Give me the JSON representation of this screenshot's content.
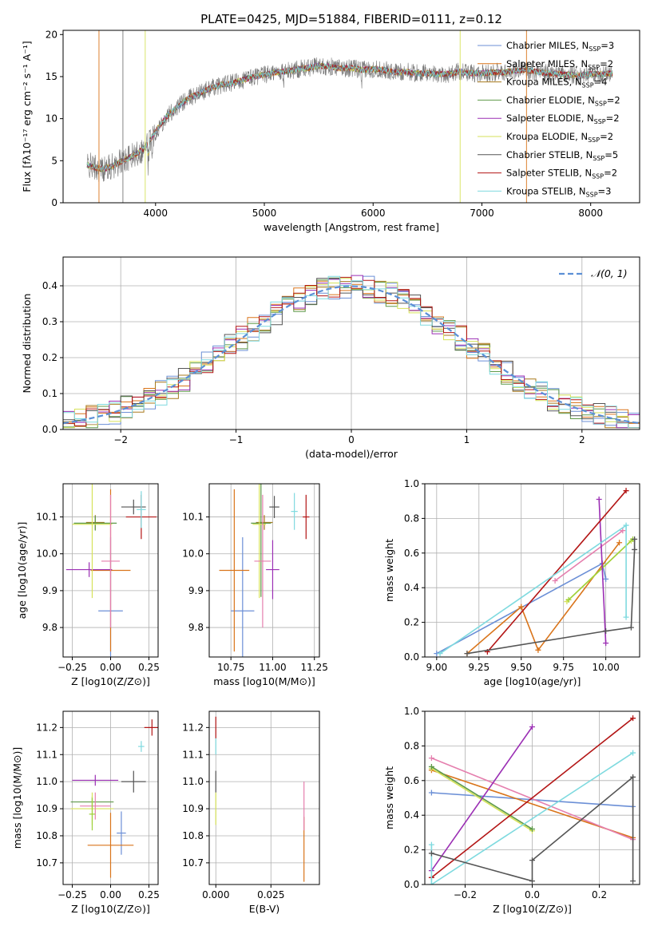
{
  "figure": {
    "title": "PLATE=0425, MJD=51884, FIBERID=0111, z=0.12",
    "colors": [
      "#6b8fd6",
      "#d9741a",
      "#a8791c",
      "#5f9a4a",
      "#9b2fb4",
      "#d6e25a",
      "#555555",
      "#b31515",
      "#7fdadf"
    ],
    "extra_colors": {
      "pink": "#e57fae",
      "lime": "#9fd13c",
      "orange": "#e67e22"
    }
  },
  "chart_data": [
    {
      "id": "spectrum",
      "type": "line",
      "xlabel": "wavelength [Angstrom, rest frame]",
      "ylabel": "Flux [fλ10⁻¹⁷ erg cm⁻² s⁻¹ A⁻¹]",
      "xlim": [
        3150,
        8450
      ],
      "ylim": [
        0,
        20.5
      ],
      "xticks": [
        4000,
        5000,
        6000,
        7000,
        8000
      ],
      "yticks": [
        0,
        5,
        10,
        15,
        20
      ],
      "grid": false,
      "legend_position": "top-right",
      "continuum": [
        [
          3370,
          4.5
        ],
        [
          3500,
          4.0
        ],
        [
          3600,
          4.3
        ],
        [
          3700,
          5.0
        ],
        [
          3800,
          5.6
        ],
        [
          3900,
          6.5
        ],
        [
          4000,
          8.5
        ],
        [
          4100,
          10.2
        ],
        [
          4200,
          11.4
        ],
        [
          4300,
          12.4
        ],
        [
          4400,
          13.0
        ],
        [
          4500,
          13.6
        ],
        [
          4600,
          14.0
        ],
        [
          4700,
          14.2
        ],
        [
          4800,
          14.6
        ],
        [
          4900,
          15.0
        ],
        [
          5000,
          15.2
        ],
        [
          5100,
          15.5
        ],
        [
          5200,
          15.6
        ],
        [
          5300,
          15.9
        ],
        [
          5400,
          16.0
        ],
        [
          5500,
          16.3
        ],
        [
          5600,
          16.2
        ],
        [
          5700,
          16.0
        ],
        [
          5800,
          16.0
        ],
        [
          5900,
          15.8
        ],
        [
          6000,
          15.9
        ],
        [
          6100,
          15.8
        ],
        [
          6200,
          15.5
        ],
        [
          6300,
          15.6
        ],
        [
          6400,
          15.4
        ],
        [
          6500,
          15.4
        ],
        [
          6600,
          15.3
        ],
        [
          6700,
          15.3
        ],
        [
          6800,
          15.6
        ],
        [
          6900,
          15.4
        ],
        [
          7000,
          15.4
        ],
        [
          7100,
          15.5
        ],
        [
          7200,
          15.5
        ],
        [
          7300,
          15.7
        ],
        [
          7400,
          15.8
        ],
        [
          7500,
          15.6
        ],
        [
          7600,
          15.4
        ],
        [
          7700,
          15.3
        ],
        [
          7800,
          15.2
        ],
        [
          7900,
          15.1
        ],
        [
          8000,
          15.3
        ],
        [
          8100,
          15.3
        ],
        [
          8200,
          15.4
        ]
      ],
      "series": [
        {
          "name": "Chabrier MILES, N_SSP=3"
        },
        {
          "name": "Salpeter MILES, N_SSP=2"
        },
        {
          "name": "Kroupa MILES, N_SSP=4"
        },
        {
          "name": "Chabrier ELODIE, N_SSP=2"
        },
        {
          "name": "Salpeter ELODIE, N_SSP=2"
        },
        {
          "name": "Kroupa ELODIE, N_SSP=2"
        },
        {
          "name": "Chabrier STELIB, N_SSP=5"
        },
        {
          "name": "Salpeter STELIB, N_SSP=2"
        },
        {
          "name": "Kroupa STELIB, N_SSP=3"
        }
      ]
    },
    {
      "id": "residual-histogram",
      "type": "bar",
      "xlabel": "(data-model)/error",
      "ylabel": "Normed distribution",
      "xlim": [
        -2.5,
        2.5
      ],
      "ylim": [
        0,
        0.48
      ],
      "xticks": [
        -2,
        -1,
        0,
        1,
        2
      ],
      "yticks": [
        0.0,
        0.1,
        0.2,
        0.3,
        0.4
      ],
      "grid": true,
      "legend": "𝒩(0, 1)",
      "legend_position": "top-right",
      "bin_width": 0.1,
      "bins_start": -2.5,
      "reference_curve": "gaussian(0,1)"
    },
    {
      "id": "age-vs-Z",
      "type": "scatter",
      "xlabel": "Z [log10(Z/Z⊙)]",
      "ylabel": "age  [log10(age/yr)]",
      "xlim": [
        -0.31,
        0.31
      ],
      "ylim": [
        9.72,
        10.19
      ],
      "xticks": [
        -0.25,
        0.0,
        0.25
      ],
      "yticks": [
        9.8,
        9.9,
        10.0,
        10.1
      ],
      "grid": true,
      "points": [
        {
          "x": 0.0,
          "y": 9.845,
          "xerr": 0.08,
          "yerr": 0.2,
          "c": 0
        },
        {
          "x": 0.0,
          "y": 9.955,
          "xerr": 0.13,
          "yerr": 0.22,
          "c": 1
        },
        {
          "x": -0.1,
          "y": 10.085,
          "xerr": 0.06,
          "yerr": 0.02,
          "c": 2
        },
        {
          "x": -0.1,
          "y": 10.083,
          "xerr": 0.14,
          "yerr": 0.02,
          "c": 3
        },
        {
          "x": -0.14,
          "y": 9.957,
          "xerr": 0.15,
          "yerr": 0.02,
          "c": 4
        },
        {
          "x": -0.12,
          "y": 10.08,
          "xerr": 0.13,
          "yerr": 0.2,
          "c": 5
        },
        {
          "x": 0.15,
          "y": 10.127,
          "xerr": 0.08,
          "yerr": 0.02,
          "c": 6
        },
        {
          "x": 0.2,
          "y": 10.1,
          "xerr": 0.1,
          "yerr": 0.06,
          "c": 7
        },
        {
          "x": 0.2,
          "y": 10.12,
          "xerr": 0.03,
          "yerr": 0.05,
          "c": 8
        },
        {
          "x": 0.0,
          "y": 9.98,
          "xerr": 0.06,
          "yerr": 0.18,
          "c": "pink"
        }
      ]
    },
    {
      "id": "age-vs-mass",
      "type": "scatter",
      "xlabel": "mass [log10(M/M⊙)]",
      "ylabel": "",
      "xlim": [
        10.62,
        11.28
      ],
      "ylim": [
        9.72,
        10.19
      ],
      "xticks": [
        10.75,
        11.0,
        11.25
      ],
      "yticks": [
        9.8,
        9.9,
        10.0,
        10.1
      ],
      "grid": true,
      "points": [
        {
          "x": 10.82,
          "y": 9.845,
          "xerr": 0.07,
          "yerr": 0.2,
          "c": 0
        },
        {
          "x": 10.77,
          "y": 9.955,
          "xerr": 0.09,
          "yerr": 0.22,
          "c": 1
        },
        {
          "x": 10.95,
          "y": 10.085,
          "xerr": 0.05,
          "yerr": 0.02,
          "c": 2
        },
        {
          "x": 10.93,
          "y": 10.083,
          "xerr": 0.06,
          "yerr": 0.2,
          "c": 3
        },
        {
          "x": 11.0,
          "y": 9.957,
          "xerr": 0.04,
          "yerr": 0.08,
          "c": 4
        },
        {
          "x": 10.92,
          "y": 10.08,
          "xerr": 0.04,
          "yerr": 0.2,
          "c": 5
        },
        {
          "x": 11.01,
          "y": 10.127,
          "xerr": 0.03,
          "yerr": 0.03,
          "c": 6
        },
        {
          "x": 11.2,
          "y": 10.1,
          "xerr": 0.02,
          "yerr": 0.06,
          "c": 7
        },
        {
          "x": 11.13,
          "y": 10.115,
          "xerr": 0.02,
          "yerr": 0.05,
          "c": 8
        },
        {
          "x": 10.94,
          "y": 9.98,
          "xerr": 0.05,
          "yerr": 0.18,
          "c": "pink"
        }
      ]
    },
    {
      "id": "weight-vs-age",
      "type": "line",
      "xlabel": "age  [log10(age/yr)]",
      "ylabel": "mass weight",
      "xlim": [
        8.93,
        10.2
      ],
      "ylim": [
        0,
        1.0
      ],
      "xticks": [
        9.0,
        9.25,
        9.5,
        9.75,
        10.0
      ],
      "yticks": [
        0.0,
        0.2,
        0.4,
        0.6,
        0.8,
        1.0
      ],
      "grid": true,
      "series": [
        {
          "c": 0,
          "pts": [
            [
              9.0,
              0.02
            ],
            [
              9.98,
              0.54
            ],
            [
              10.0,
              0.45
            ]
          ]
        },
        {
          "c": 1,
          "pts": [
            [
              9.18,
              0.02
            ],
            [
              9.5,
              0.29
            ],
            [
              9.6,
              0.04
            ],
            [
              10.08,
              0.66
            ]
          ]
        },
        {
          "c": "pink",
          "pts": [
            [
              9.7,
              0.44
            ],
            [
              10.1,
              0.73
            ]
          ]
        },
        {
          "c": 5,
          "pts": [
            [
              9.77,
              0.32
            ],
            [
              10.15,
              0.67
            ]
          ]
        },
        {
          "c": "lime",
          "pts": [
            [
              9.78,
              0.33
            ],
            [
              10.16,
              0.68
            ]
          ]
        },
        {
          "c": 4,
          "pts": [
            [
              9.96,
              0.91
            ],
            [
              10.0,
              0.08
            ]
          ]
        },
        {
          "c": 7,
          "pts": [
            [
              9.3,
              0.03
            ],
            [
              10.12,
              0.96
            ]
          ]
        },
        {
          "c": 8,
          "pts": [
            [
              9.02,
              0.02
            ],
            [
              10.12,
              0.76
            ],
            [
              10.12,
              0.23
            ]
          ]
        },
        {
          "c": 6,
          "pts": [
            [
              9.18,
              0.02
            ],
            [
              10.0,
              0.15
            ],
            [
              10.15,
              0.17
            ],
            [
              10.17,
              0.62
            ],
            [
              10.17,
              0.68
            ]
          ]
        }
      ]
    },
    {
      "id": "mass-vs-Z",
      "type": "scatter",
      "xlabel": "Z [log10(Z/Z⊙)]",
      "ylabel": "mass [log10(M/M⊙)]",
      "xlim": [
        -0.31,
        0.31
      ],
      "ylim": [
        10.62,
        11.26
      ],
      "xticks": [
        -0.25,
        0.0,
        0.25
      ],
      "yticks": [
        10.7,
        10.8,
        10.9,
        11.0,
        11.1,
        11.2
      ],
      "grid": true,
      "points": [
        {
          "x": 0.07,
          "y": 10.81,
          "xerr": 0.03,
          "yerr": 0.08,
          "c": 0
        },
        {
          "x": 0.0,
          "y": 10.765,
          "xerr": 0.15,
          "yerr": 0.12,
          "c": 1
        },
        {
          "x": -0.12,
          "y": 10.925,
          "xerr": 0.14,
          "yerr": 0.02,
          "c": 3
        },
        {
          "x": -0.1,
          "y": 11.005,
          "xerr": 0.15,
          "yerr": 0.02,
          "c": 4
        },
        {
          "x": -0.12,
          "y": 10.9,
          "xerr": 0.14,
          "yerr": 0.06,
          "c": 5
        },
        {
          "x": 0.15,
          "y": 11.0,
          "xerr": 0.08,
          "yerr": 0.04,
          "c": 6
        },
        {
          "x": 0.27,
          "y": 11.2,
          "xerr": 0.05,
          "yerr": 0.03,
          "c": 7
        },
        {
          "x": 0.2,
          "y": 11.13,
          "xerr": 0.02,
          "yerr": 0.02,
          "c": 8
        },
        {
          "x": -0.1,
          "y": 10.91,
          "xerr": 0.1,
          "yerr": 0.05,
          "c": "pink"
        },
        {
          "x": -0.12,
          "y": 10.88,
          "xerr": 0.02,
          "yerr": 0.06,
          "c": "lime"
        }
      ]
    },
    {
      "id": "mass-vs-EBV",
      "type": "scatter",
      "xlabel": "E(B-V)",
      "ylabel": "",
      "xlim": [
        -0.003,
        0.047
      ],
      "ylim": [
        10.62,
        11.26
      ],
      "xticks": [
        0.0,
        0.025
      ],
      "yticks": [
        10.7,
        10.8,
        10.9,
        11.0,
        11.1,
        11.2
      ],
      "grid": true,
      "points": [
        {
          "x": 0.0,
          "y": 11.2,
          "xerr": 0.0,
          "yerr": 0.04,
          "c": 7
        },
        {
          "x": 0.0,
          "y": 11.13,
          "xerr": 0.0,
          "yerr": 0.03,
          "c": 8
        },
        {
          "x": 0.0,
          "y": 11.0,
          "xerr": 0.0,
          "yerr": 0.04,
          "c": 6
        },
        {
          "x": 0.0,
          "y": 10.9,
          "xerr": 0.0,
          "yerr": 0.06,
          "c": 5
        },
        {
          "x": 0.04,
          "y": 10.75,
          "xerr": 0.0,
          "yerr": 0.12,
          "c": 1
        },
        {
          "x": 0.04,
          "y": 10.91,
          "xerr": 0.0,
          "yerr": 0.09,
          "c": "pink"
        }
      ]
    },
    {
      "id": "weight-vs-Z",
      "type": "line",
      "xlabel": "Z [log10(Z/Z⊙)]",
      "ylabel": "mass weight",
      "xlim": [
        -0.32,
        0.32
      ],
      "ylim": [
        0,
        1.0
      ],
      "xticks": [
        -0.2,
        0.0,
        0.2
      ],
      "yticks": [
        0.0,
        0.2,
        0.4,
        0.6,
        0.8,
        1.0
      ],
      "grid": true,
      "series": [
        {
          "c": 0,
          "pts": [
            [
              -0.3,
              0.53
            ],
            [
              0.3,
              0.45
            ]
          ]
        },
        {
          "c": 1,
          "pts": [
            [
              -0.3,
              0.66
            ],
            [
              0.3,
              0.27
            ]
          ]
        },
        {
          "c": "pink",
          "pts": [
            [
              -0.3,
              0.73
            ],
            [
              0.3,
              0.26
            ]
          ]
        },
        {
          "c": 5,
          "pts": [
            [
              -0.3,
              0.67
            ],
            [
              0.0,
              0.31
            ]
          ]
        },
        {
          "c": 3,
          "pts": [
            [
              -0.3,
              0.68
            ],
            [
              0.0,
              0.32
            ]
          ]
        },
        {
          "c": 4,
          "pts": [
            [
              -0.3,
              0.08
            ],
            [
              0.0,
              0.91
            ]
          ]
        },
        {
          "c": 7,
          "pts": [
            [
              -0.3,
              0.04
            ],
            [
              0.3,
              0.96
            ]
          ]
        },
        {
          "c": 8,
          "pts": [
            [
              -0.3,
              0.23
            ],
            [
              -0.3,
              0.0
            ],
            [
              0.3,
              0.76
            ]
          ]
        },
        {
          "c": 6,
          "pts": [
            [
              -0.3,
              0.18
            ],
            [
              0.0,
              0.02
            ],
            [
              0.0,
              0.14
            ],
            [
              0.3,
              0.62
            ],
            [
              0.3,
              0.02
            ]
          ]
        }
      ]
    }
  ]
}
